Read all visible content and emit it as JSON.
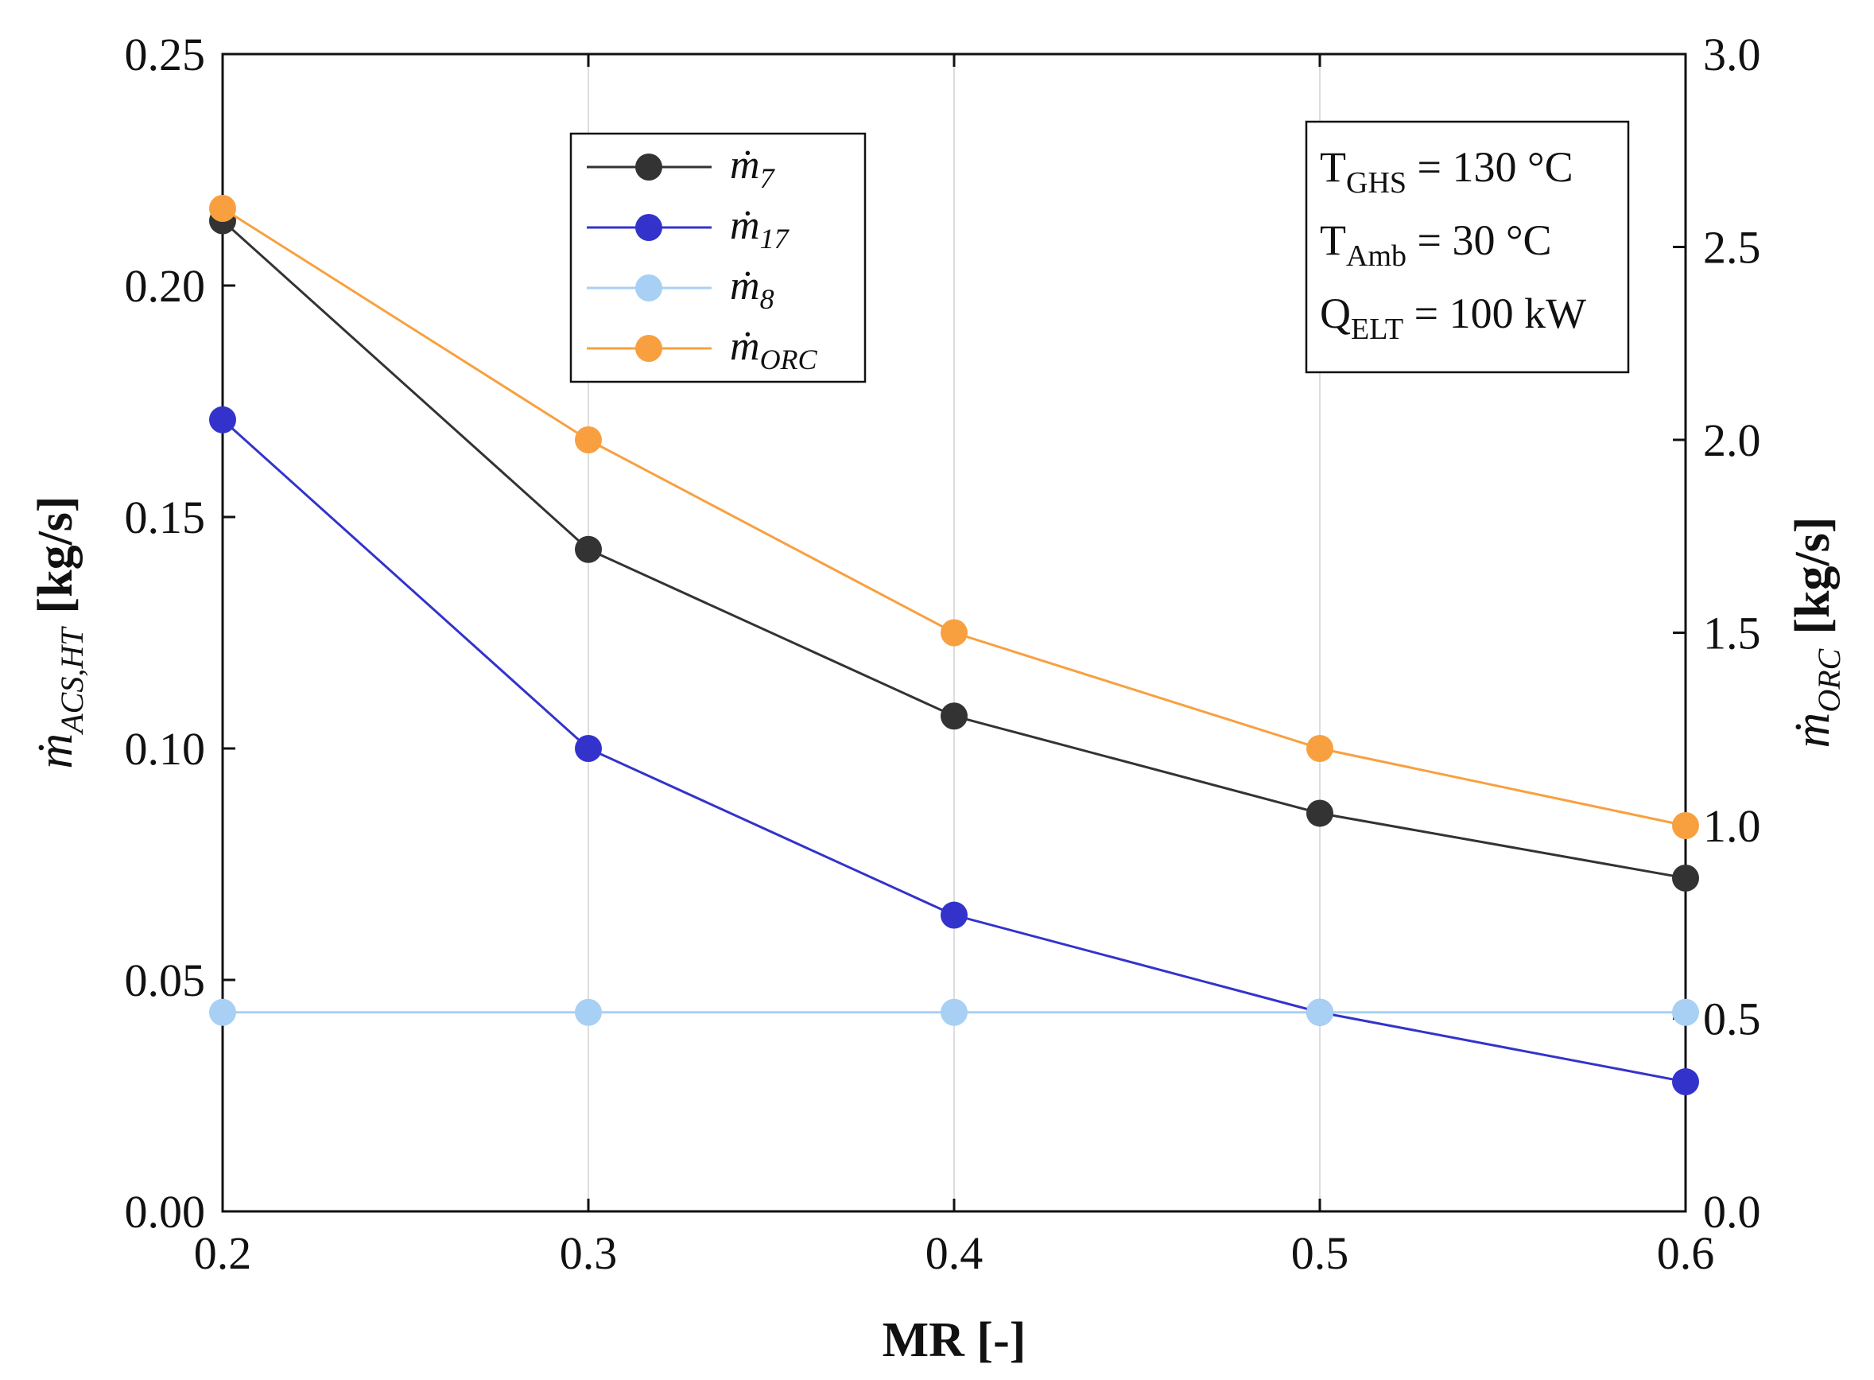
{
  "chart_data": {
    "type": "line",
    "x": [
      0.2,
      0.3,
      0.4,
      0.5,
      0.6
    ],
    "xlabel": "MR [-]",
    "xlim": [
      0.2,
      0.6
    ],
    "xticks": [
      "0.2",
      "0.3",
      "0.4",
      "0.5",
      "0.6"
    ],
    "ylabel_left": {
      "main": "ṁ",
      "sub": "ACS,HT",
      "unit": "[kg/s]"
    },
    "ylim_left": [
      0,
      0.25
    ],
    "yticks_left": [
      "0.00",
      "0.05",
      "0.10",
      "0.15",
      "0.20",
      "0.25"
    ],
    "ylabel_right": {
      "main": "ṁ",
      "sub": "ORC",
      "unit": "[kg/s]"
    },
    "ylim_right": [
      0,
      3.0
    ],
    "yticks_right": [
      "0.0",
      "0.5",
      "1.0",
      "1.5",
      "2.0",
      "2.5",
      "3.0"
    ],
    "grid": "vertical",
    "legend_position": "top-left",
    "series": [
      {
        "name": "ṁ",
        "sub": "7",
        "axis": "left",
        "color": "#333333",
        "values": [
          0.214,
          0.143,
          0.107,
          0.086,
          0.072
        ]
      },
      {
        "name": "ṁ",
        "sub": "17",
        "axis": "left",
        "color": "#3333cc",
        "values": [
          0.171,
          0.1,
          0.064,
          0.043,
          0.028
        ]
      },
      {
        "name": "ṁ",
        "sub": "8",
        "axis": "left",
        "color": "#a8d0f5",
        "values": [
          0.043,
          0.043,
          0.043,
          0.043,
          0.043
        ]
      },
      {
        "name": "ṁ",
        "sub": "ORC",
        "axis": "right",
        "color": "#f8a040",
        "values": [
          2.6,
          2.0,
          1.5,
          1.2,
          1.0
        ]
      }
    ],
    "annotations": [
      {
        "main": "T",
        "sub": "GHS",
        "rest": " = 130 °C"
      },
      {
        "main": "T",
        "sub": "Amb",
        "rest": " = 30 °C"
      },
      {
        "main": "Q",
        "sub": "ELT",
        "rest": " = 100 kW"
      }
    ]
  }
}
